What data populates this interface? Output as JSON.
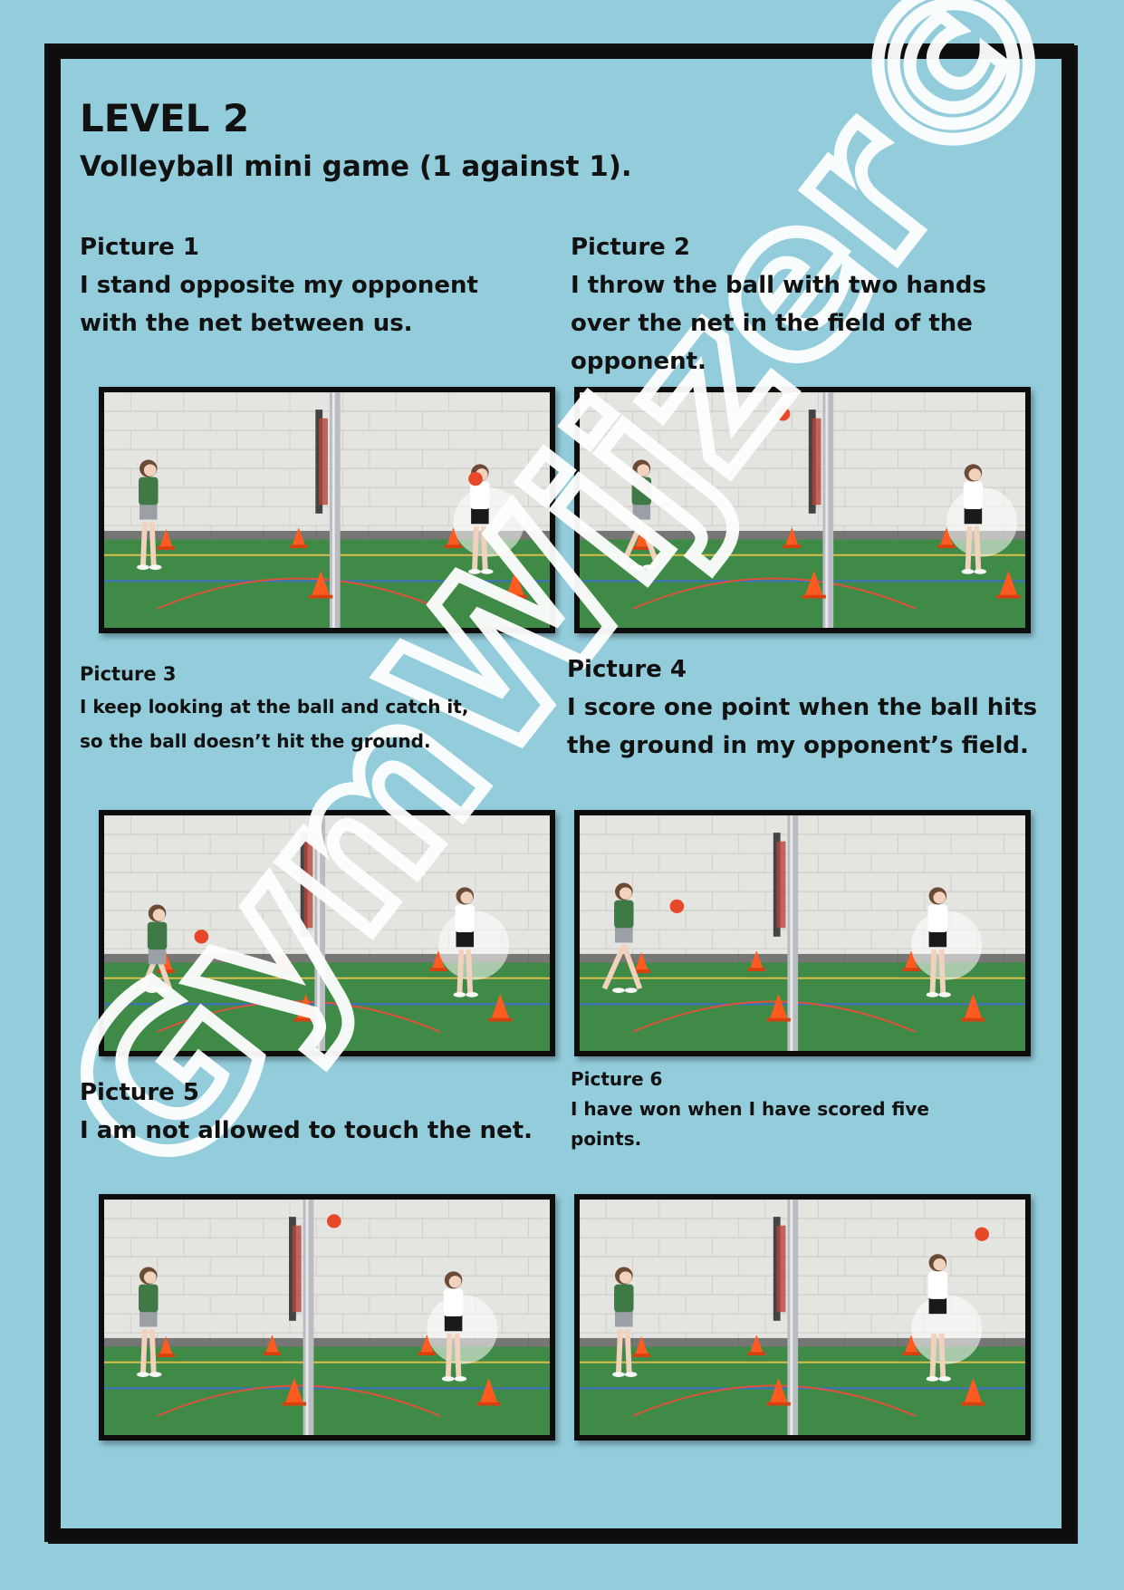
{
  "header": {
    "title": "LEVEL 2",
    "subtitle": "Volleyball mini game (1 against 1)."
  },
  "watermark_text": "GymWijzer©",
  "pictures": [
    {
      "label": "Picture 1",
      "text": [
        "I stand opposite my opponent",
        "with the net between us."
      ]
    },
    {
      "label": "Picture 2",
      "text": [
        "I throw the ball with two hands",
        "over the net in the field of the",
        "opponent."
      ]
    },
    {
      "label": "Picture 3",
      "text": [
        "I keep looking at the ball and catch it,",
        "so the ball doesn’t hit the ground."
      ]
    },
    {
      "label": "Picture 4",
      "text": [
        "I score one point when the ball hits",
        "the ground in my opponent’s field."
      ]
    },
    {
      "label": "Picture 5",
      "text": [
        "I am not allowed to touch the net."
      ]
    },
    {
      "label": "Picture 6",
      "text": [
        "I have won when I have scored five",
        "points."
      ]
    }
  ],
  "colors": {
    "page_background": "#93cddb",
    "frame": "#0d0d0d",
    "gym_wall": "#e4e4e0",
    "gym_floor": "#3f8a46",
    "ball": "#e8482a",
    "cone": "#ff5a1f"
  }
}
